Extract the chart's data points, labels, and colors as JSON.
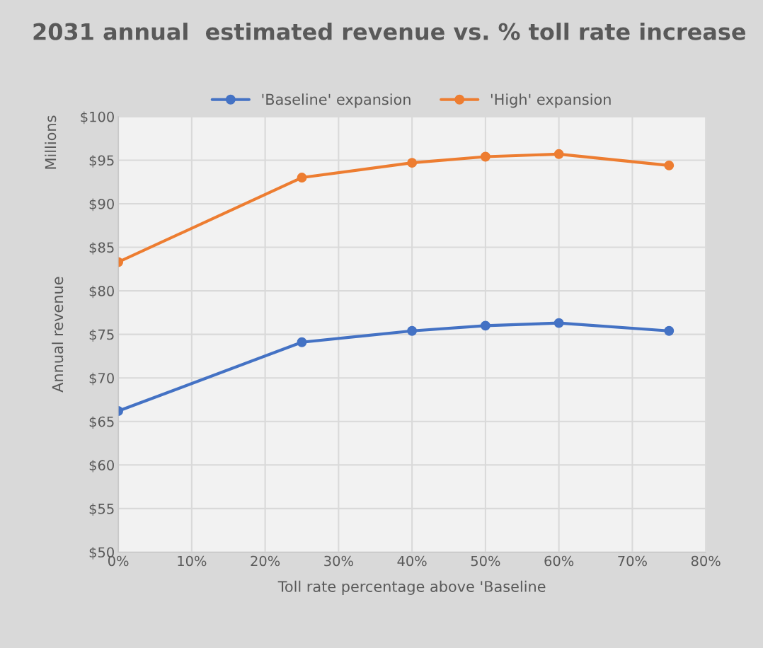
{
  "chart_data": {
    "type": "line",
    "title": "2031 annual  estimated revenue vs. % toll rate increase",
    "xlabel": "Toll rate percentage above 'Baseline",
    "ylabel": "Annual revenue",
    "annotations": [
      "Millions"
    ],
    "x": [
      0,
      25,
      40,
      50,
      60,
      75
    ],
    "series": [
      {
        "name": "'Baseline' expansion",
        "color": "#4472c4",
        "values": [
          66.2,
          74.1,
          75.4,
          76.0,
          76.3,
          75.4
        ]
      },
      {
        "name": "'High' expansion",
        "color": "#ed7d31",
        "values": [
          83.3,
          93.0,
          94.7,
          95.4,
          95.7,
          94.4
        ]
      }
    ],
    "xlim": [
      0,
      80
    ],
    "xticks": [
      {
        "value": 0,
        "label": "0%"
      },
      {
        "value": 10,
        "label": "10%"
      },
      {
        "value": 20,
        "label": "20%"
      },
      {
        "value": 30,
        "label": "30%"
      },
      {
        "value": 40,
        "label": "40%"
      },
      {
        "value": 50,
        "label": "50%"
      },
      {
        "value": 60,
        "label": "60%"
      },
      {
        "value": 70,
        "label": "70%"
      },
      {
        "value": 80,
        "label": "80%"
      }
    ],
    "ylim": [
      50,
      100
    ],
    "yticks": [
      {
        "value": 50,
        "label": "$50"
      },
      {
        "value": 55,
        "label": "$55"
      },
      {
        "value": 60,
        "label": "$60"
      },
      {
        "value": 65,
        "label": "$65"
      },
      {
        "value": 70,
        "label": "$70"
      },
      {
        "value": 75,
        "label": "$75"
      },
      {
        "value": 80,
        "label": "$80"
      },
      {
        "value": 85,
        "label": "$85"
      },
      {
        "value": 90,
        "label": "$90"
      },
      {
        "value": 95,
        "label": "$95"
      },
      {
        "value": 100,
        "label": "$100"
      }
    ],
    "grid": true,
    "legend": "top",
    "marker": "circle",
    "line_style": "solid"
  }
}
